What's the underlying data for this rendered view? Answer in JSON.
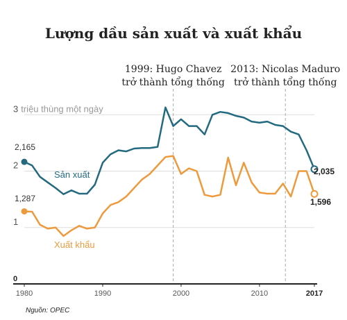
{
  "title": "Lượng dầu sản xuất và xuất khẩu",
  "source": "Nguồn: OPEC",
  "colors": {
    "production": "#236a80",
    "export": "#ee9a3c",
    "grid": "#dddddd",
    "event_line": "#aaaaaa",
    "axis": "#222222"
  },
  "chart_data": {
    "type": "line",
    "title": "Lượng dầu sản xuất và xuất khẩu",
    "xlabel": "",
    "ylabel": "",
    "x_ticks": [
      {
        "value": 1980,
        "label": "1980",
        "bold": false
      },
      {
        "value": 1990,
        "label": "1990",
        "bold": false
      },
      {
        "value": 2000,
        "label": "2000",
        "bold": false
      },
      {
        "value": 2010,
        "label": "2010",
        "bold": false
      },
      {
        "value": 2017,
        "label": "2017",
        "bold": true
      }
    ],
    "y_ticks": [
      {
        "value": 0,
        "label": "0",
        "bold": true,
        "unit": ""
      },
      {
        "value": 1,
        "label": "1",
        "bold": false,
        "unit": ""
      },
      {
        "value": 2,
        "label": "2",
        "bold": false,
        "unit": ""
      },
      {
        "value": 3,
        "label": "3",
        "bold": false,
        "unit": "triệu thùng một ngày"
      }
    ],
    "xlim": [
      1980,
      2017
    ],
    "ylim": [
      0,
      3.25
    ],
    "grid": true,
    "events": [
      {
        "year": 1999,
        "lines": [
          "1999: Hugo Chavez",
          "trở thành tổng thống"
        ]
      },
      {
        "year": 2013.3,
        "lines": [
          "2013: Nicolas Maduro",
          "trở thành tổng thống"
        ]
      }
    ],
    "series": [
      {
        "name": "Sản xuất",
        "color_key": "production",
        "start_label": "2,165",
        "end_label": "2,035",
        "points": [
          [
            1980,
            2.165
          ],
          [
            1981,
            2.1
          ],
          [
            1982,
            1.9
          ],
          [
            1983,
            1.8
          ],
          [
            1984,
            1.7
          ],
          [
            1985,
            1.59
          ],
          [
            1986,
            1.66
          ],
          [
            1987,
            1.6
          ],
          [
            1988,
            1.6
          ],
          [
            1989,
            1.76
          ],
          [
            1990,
            2.15
          ],
          [
            1991,
            2.3
          ],
          [
            1992,
            2.37
          ],
          [
            1993,
            2.35
          ],
          [
            1994,
            2.4
          ],
          [
            1995,
            2.41
          ],
          [
            1996,
            2.41
          ],
          [
            1997,
            2.43
          ],
          [
            1998,
            3.13
          ],
          [
            1999,
            2.8
          ],
          [
            2000,
            2.92
          ],
          [
            2001,
            2.8
          ],
          [
            2002,
            2.8
          ],
          [
            2003,
            2.65
          ],
          [
            2004,
            3.0
          ],
          [
            2005,
            3.05
          ],
          [
            2006,
            3.03
          ],
          [
            2007,
            2.98
          ],
          [
            2008,
            2.95
          ],
          [
            2009,
            2.88
          ],
          [
            2010,
            2.86
          ],
          [
            2011,
            2.88
          ],
          [
            2012,
            2.82
          ],
          [
            2013,
            2.8
          ],
          [
            2014,
            2.7
          ],
          [
            2015,
            2.65
          ],
          [
            2016,
            2.37
          ],
          [
            2017,
            2.035
          ]
        ]
      },
      {
        "name": "Xuất khẩu",
        "color_key": "export",
        "start_label": "1,287",
        "end_label": "1,596",
        "points": [
          [
            1980,
            1.287
          ],
          [
            1981,
            1.28
          ],
          [
            1982,
            1.05
          ],
          [
            1983,
            0.98
          ],
          [
            1984,
            1.0
          ],
          [
            1985,
            0.85
          ],
          [
            1986,
            0.95
          ],
          [
            1987,
            1.03
          ],
          [
            1988,
            0.98
          ],
          [
            1989,
            1.0
          ],
          [
            1990,
            1.25
          ],
          [
            1991,
            1.4
          ],
          [
            1992,
            1.45
          ],
          [
            1993,
            1.55
          ],
          [
            1994,
            1.7
          ],
          [
            1995,
            1.85
          ],
          [
            1996,
            1.95
          ],
          [
            1997,
            2.1
          ],
          [
            1998,
            2.25
          ],
          [
            1999,
            2.27
          ],
          [
            2000,
            1.95
          ],
          [
            2001,
            2.05
          ],
          [
            2002,
            2.0
          ],
          [
            2003,
            1.58
          ],
          [
            2004,
            1.55
          ],
          [
            2005,
            1.58
          ],
          [
            2006,
            2.24
          ],
          [
            2007,
            1.75
          ],
          [
            2008,
            2.15
          ],
          [
            2009,
            1.8
          ],
          [
            2010,
            1.62
          ],
          [
            2011,
            1.6
          ],
          [
            2012,
            1.6
          ],
          [
            2013,
            1.78
          ],
          [
            2014,
            1.55
          ],
          [
            2015,
            2.0
          ],
          [
            2016,
            2.0
          ],
          [
            2017,
            1.596
          ]
        ]
      }
    ]
  }
}
